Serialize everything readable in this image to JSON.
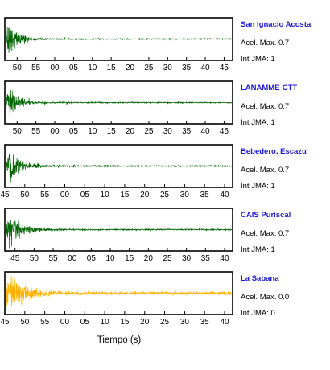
{
  "chart_data": {
    "type": "line",
    "xlabel": "Tiempo (s)",
    "trace_color_default": "#006400",
    "station_label_color": "#1a1adb",
    "panels": [
      {
        "station": "San Ignacio Acosta",
        "accel_label": "Acel. Max. 0.7",
        "jma_label": "Int JMA: 1",
        "color": "#006400",
        "ticks": [
          "50",
          "55",
          "00",
          "05",
          "10",
          "15",
          "20",
          "25",
          "30",
          "35",
          "40",
          "45"
        ],
        "first_tick_frac": 0.054,
        "tick_step_frac": 0.0826,
        "envelope": {
          "peak": 1.0,
          "decay": 4.2,
          "floor": 0.03,
          "onset": 0.006
        }
      },
      {
        "station": "LANAMME-CTT",
        "accel_label": "Acel. Max. 0.7",
        "jma_label": "Int JMA: 1",
        "color": "#006400",
        "ticks": [
          "50",
          "55",
          "00",
          "05",
          "10",
          "15",
          "20",
          "25",
          "30",
          "35",
          "40",
          "45"
        ],
        "first_tick_frac": 0.054,
        "tick_step_frac": 0.0826,
        "envelope": {
          "peak": 0.92,
          "decay": 4.0,
          "floor": 0.03,
          "onset": 0.008
        }
      },
      {
        "station": "Bebedero, Escazu",
        "accel_label": "Acel. Max. 0.7",
        "jma_label": "Int JMA: 1",
        "color": "#006400",
        "ticks": [
          "45",
          "50",
          "55",
          "00",
          "05",
          "10",
          "15",
          "20",
          "25",
          "30",
          "35",
          "40"
        ],
        "first_tick_frac": 0.0,
        "tick_step_frac": 0.0877,
        "envelope": {
          "peak": 0.9,
          "decay": 3.4,
          "floor": 0.035,
          "onset": 0.008
        }
      },
      {
        "station": "CAIS Puriscal",
        "accel_label": "Acel. Max. 0.7",
        "jma_label": "Int JMA: 1",
        "color": "#006400",
        "ticks": [
          "45",
          "50",
          "55",
          "00",
          "05",
          "10",
          "15",
          "20",
          "25",
          "30",
          "35",
          "40"
        ],
        "first_tick_frac": 0.045,
        "tick_step_frac": 0.0836,
        "envelope": {
          "peak": 1.0,
          "decay": 3.2,
          "floor": 0.035,
          "onset": 0.01
        }
      },
      {
        "station": "La Sabana",
        "accel_label": "Acel. Max. 0.0",
        "jma_label": "Int JMA: 0",
        "color": "#ffb000",
        "ticks": [
          "45",
          "50",
          "55",
          "00",
          "05",
          "10",
          "15",
          "20",
          "25",
          "30",
          "35",
          "40"
        ],
        "first_tick_frac": 0.0,
        "tick_step_frac": 0.0877,
        "envelope": {
          "peak": 1.0,
          "decay": 2.6,
          "floor": 0.1,
          "onset": 0.005
        }
      }
    ]
  }
}
